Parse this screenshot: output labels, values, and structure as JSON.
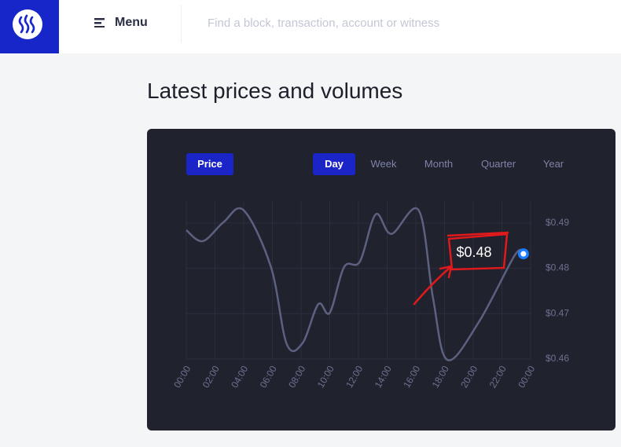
{
  "header": {
    "menu": "Menu",
    "search_placeholder": "Find a block, transaction, account or witness"
  },
  "page": {
    "title": "Latest prices and volumes"
  },
  "tabs": {
    "metric": "Price",
    "periods": [
      "Day",
      "Week",
      "Month",
      "Quarter",
      "Year"
    ]
  },
  "chart_data": {
    "type": "line",
    "annotation": "$0.48",
    "x": [
      0,
      1.15,
      2.6,
      4.0,
      5.9,
      7.0,
      8.1,
      9.2,
      10.0,
      11.0,
      12.1,
      13.2,
      14.3,
      16.2,
      17.2,
      18.2,
      20.4,
      22.9,
      23.5
    ],
    "series": [
      {
        "color": "#5d6180",
        "values": [
          0.4884,
          0.486,
          0.4902,
          0.4928,
          0.4803,
          0.4633,
          0.4635,
          0.4721,
          0.4702,
          0.4803,
          0.4815,
          0.4919,
          0.4876,
          0.4928,
          0.4734,
          0.4598,
          0.4682,
          0.4829,
          0.4832
        ]
      }
    ],
    "xlim": [
      0,
      24
    ],
    "xticks": [
      {
        "value": 0,
        "label": "00:00"
      },
      {
        "value": 2,
        "label": "02:00"
      },
      {
        "value": 4,
        "label": "04:00"
      },
      {
        "value": 6,
        "label": "06:00"
      },
      {
        "value": 8,
        "label": "08:00"
      },
      {
        "value": 10,
        "label": "10:00"
      },
      {
        "value": 12,
        "label": "12:00"
      },
      {
        "value": 14,
        "label": "14:00"
      },
      {
        "value": 16,
        "label": "16:00"
      },
      {
        "value": 18,
        "label": "18:00"
      },
      {
        "value": 20,
        "label": "20:00"
      },
      {
        "value": 22,
        "label": "22:00"
      },
      {
        "value": 24,
        "label": "00:00"
      }
    ],
    "ylim": [
      0.46,
      0.495
    ],
    "yticks": [
      {
        "value": 0.46,
        "label": "$0.46"
      },
      {
        "value": 0.47,
        "label": "$0.47"
      },
      {
        "value": 0.48,
        "label": "$0.48"
      },
      {
        "value": 0.49,
        "label": "$0.49"
      }
    ],
    "marker_color": "#1b7cff",
    "grid": true
  }
}
